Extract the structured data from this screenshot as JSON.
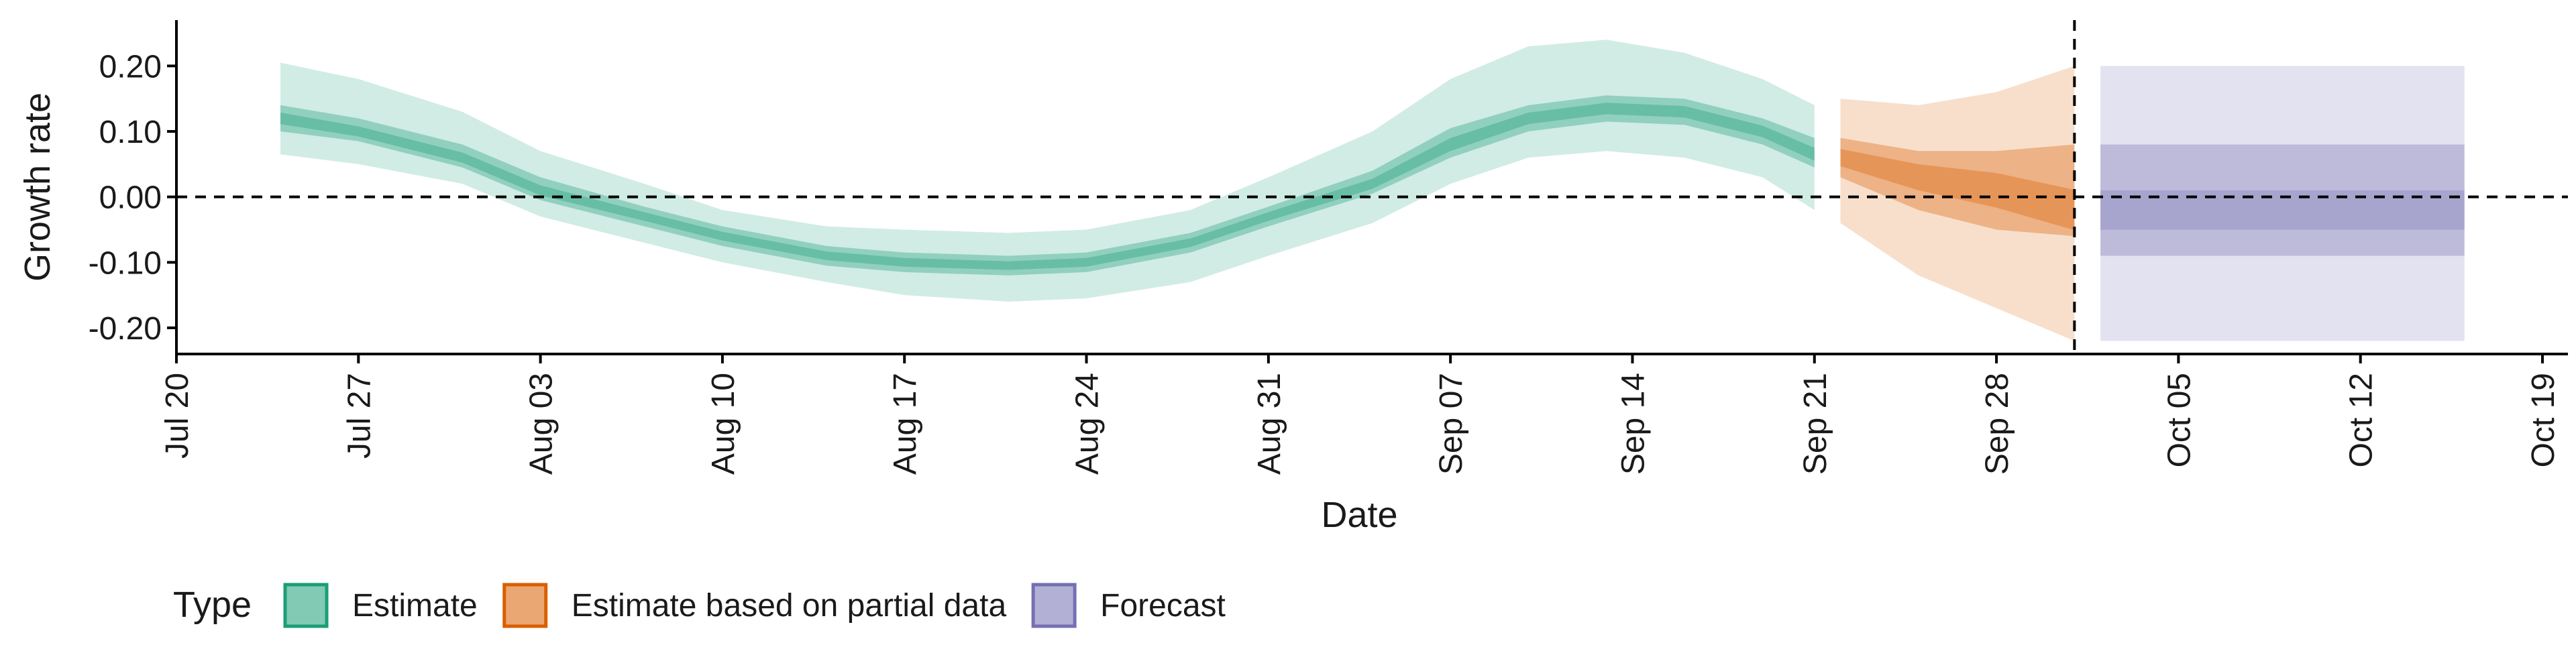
{
  "chart_data": {
    "type": "area",
    "xlabel": "Date",
    "ylabel": "Growth rate",
    "xlim": [
      "2020-07-20",
      "2020-10-19"
    ],
    "ylim": [
      -0.24,
      0.27
    ],
    "x_ticks": [
      "2020-07-20",
      "2020-07-27",
      "2020-08-03",
      "2020-08-10",
      "2020-08-17",
      "2020-08-24",
      "2020-08-31",
      "2020-09-07",
      "2020-09-14",
      "2020-09-21",
      "2020-09-28",
      "2020-10-05",
      "2020-10-12",
      "2020-10-19"
    ],
    "x_tick_labels": [
      "Jul 20",
      "Jul 27",
      "Aug 03",
      "Aug 10",
      "Aug 17",
      "Aug 24",
      "Aug 31",
      "Sep 07",
      "Sep 14",
      "Sep 21",
      "Sep 28",
      "Oct 05",
      "Oct 12",
      "Oct 19"
    ],
    "y_ticks": [
      -0.2,
      -0.1,
      0.0,
      0.1,
      0.2
    ],
    "y_tick_labels": [
      "-0.20",
      "-0.10",
      "0.00",
      "0.10",
      "0.20"
    ],
    "hline": 0,
    "vline": "2020-10-01",
    "grid": false,
    "legend": {
      "title": "Type",
      "placement": "bottom",
      "entries": [
        {
          "label": "Estimate",
          "color": "#1b9e77"
        },
        {
          "label": "Estimate based on partial data",
          "color": "#d95f02"
        },
        {
          "label": "Forecast",
          "color": "#7570b3"
        }
      ]
    },
    "series": [
      {
        "name": "Estimate",
        "color": "#1b9e77",
        "x": [
          "2020-07-24",
          "2020-07-27",
          "2020-07-31",
          "2020-08-03",
          "2020-08-07",
          "2020-08-10",
          "2020-08-14",
          "2020-08-17",
          "2020-08-21",
          "2020-08-24",
          "2020-08-28",
          "2020-08-31",
          "2020-09-04",
          "2020-09-07",
          "2020-09-10",
          "2020-09-13",
          "2020-09-16",
          "2020-09-19",
          "2020-09-21"
        ],
        "median": [
          0.12,
          0.1,
          0.06,
          0.01,
          -0.03,
          -0.06,
          -0.09,
          -0.1,
          -0.105,
          -0.1,
          -0.07,
          -0.03,
          0.02,
          0.08,
          0.12,
          0.135,
          0.13,
          0.1,
          0.065
        ],
        "lower90": [
          0.065,
          0.05,
          0.02,
          -0.03,
          -0.07,
          -0.1,
          -0.13,
          -0.15,
          -0.16,
          -0.155,
          -0.13,
          -0.09,
          -0.04,
          0.02,
          0.06,
          0.07,
          0.06,
          0.03,
          -0.02
        ],
        "upper90": [
          0.205,
          0.18,
          0.13,
          0.07,
          0.02,
          -0.02,
          -0.045,
          -0.05,
          -0.055,
          -0.05,
          -0.02,
          0.03,
          0.1,
          0.18,
          0.23,
          0.24,
          0.22,
          0.18,
          0.14
        ],
        "lower50": [
          0.1,
          0.085,
          0.045,
          -0.005,
          -0.045,
          -0.075,
          -0.105,
          -0.115,
          -0.12,
          -0.115,
          -0.085,
          -0.045,
          0.005,
          0.06,
          0.1,
          0.115,
          0.11,
          0.08,
          0.045
        ],
        "upper50": [
          0.14,
          0.12,
          0.08,
          0.03,
          -0.015,
          -0.045,
          -0.075,
          -0.085,
          -0.09,
          -0.085,
          -0.055,
          -0.015,
          0.04,
          0.105,
          0.14,
          0.155,
          0.15,
          0.12,
          0.09
        ]
      },
      {
        "name": "Estimate based on partial data",
        "color": "#d95f02",
        "x": [
          "2020-09-22",
          "2020-09-25",
          "2020-09-28",
          "2020-10-01"
        ],
        "median": [
          0.06,
          0.03,
          0.01,
          -0.02
        ],
        "lower90": [
          -0.04,
          -0.12,
          -0.17,
          -0.22
        ],
        "upper90": [
          0.15,
          0.14,
          0.16,
          0.2
        ],
        "lower50": [
          0.03,
          -0.02,
          -0.05,
          -0.06
        ],
        "upper50": [
          0.09,
          0.07,
          0.07,
          0.08
        ]
      },
      {
        "name": "Forecast",
        "color": "#7570b3",
        "x": [
          "2020-10-02",
          "2020-10-16"
        ],
        "median": [
          0.0,
          0.0
        ],
        "lower90": [
          -0.22,
          -0.22
        ],
        "upper90": [
          0.2,
          0.2
        ],
        "lower50": [
          -0.09,
          -0.09
        ],
        "upper50": [
          0.08,
          0.08
        ],
        "lower20": [
          -0.05,
          -0.05
        ],
        "upper20": [
          0.01,
          0.01
        ]
      }
    ]
  }
}
